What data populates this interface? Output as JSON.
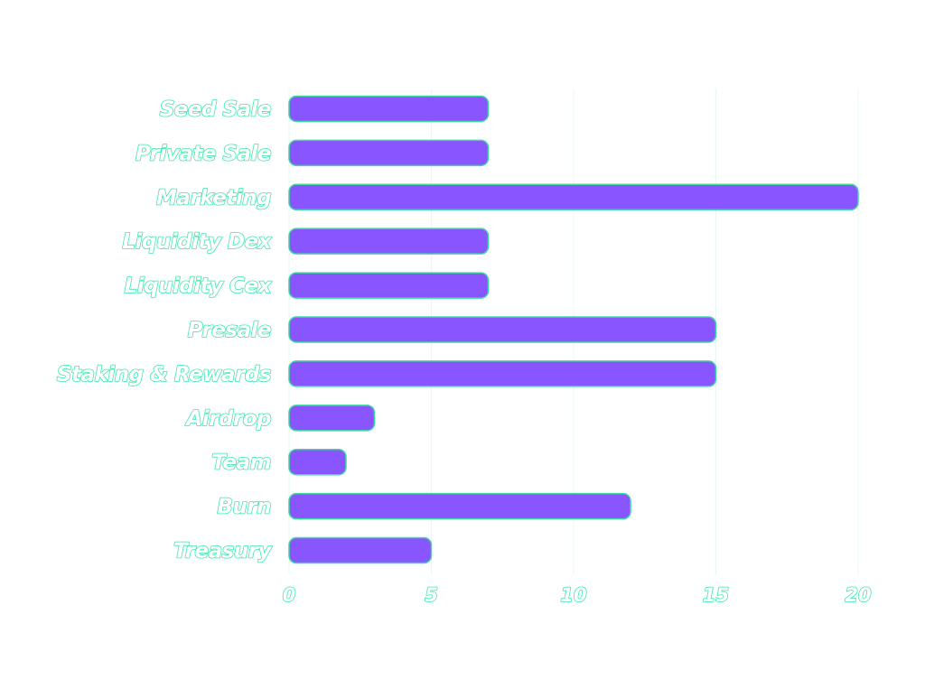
{
  "chart_data": {
    "type": "bar",
    "orientation": "horizontal",
    "categories": [
      "Seed Sale",
      "Private Sale",
      "Marketing",
      "Liquidity Dex",
      "Liquidity Cex",
      "Presale",
      "Staking & Rewards",
      "Airdrop",
      "Team",
      "Burn",
      "Treasury"
    ],
    "values": [
      7,
      7,
      20,
      7,
      7,
      15,
      15,
      3,
      2,
      12,
      5
    ],
    "xlim": [
      0,
      20
    ],
    "x_ticks": [
      0,
      5,
      10,
      15,
      20
    ],
    "tick_labels": [
      "0",
      "5",
      "10",
      "15",
      "20"
    ],
    "grid": true,
    "title": "",
    "xlabel": "",
    "ylabel": ""
  },
  "colors": {
    "bar_fill": "#8855ff",
    "bar_outline": "#3dd9a0",
    "text_fill": "#ffffff",
    "text_outline": "#3de8a8",
    "grid": "#e4faf0"
  }
}
